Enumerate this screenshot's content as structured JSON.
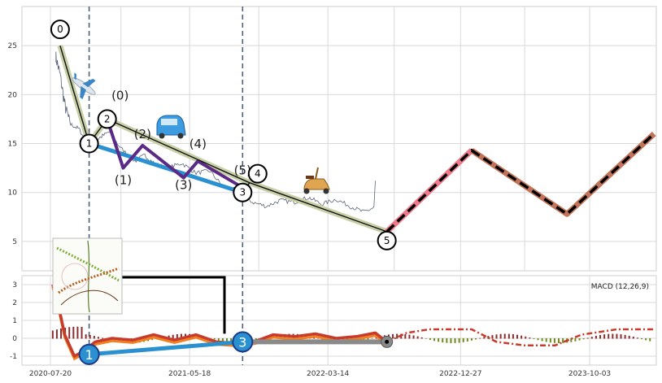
{
  "chart_data": [
    {
      "type": "line",
      "panel": "price",
      "ylim": [
        2,
        29
      ],
      "yticks": [
        5,
        10,
        15,
        20,
        25
      ],
      "grid": true,
      "price_series": [
        {
          "x": "2020-08-01",
          "y": 24
        },
        {
          "x": "2020-08-10",
          "y": 22
        },
        {
          "x": "2020-08-20",
          "y": 19
        },
        {
          "x": "2020-09-01",
          "y": 17
        },
        {
          "x": "2020-09-20",
          "y": 16.5
        },
        {
          "x": "2020-10-12",
          "y": 14.8
        },
        {
          "x": "2020-11-01",
          "y": 15.5
        },
        {
          "x": "2020-11-25",
          "y": 16.2
        },
        {
          "x": "2020-12-20",
          "y": 14.5
        },
        {
          "x": "2021-01-20",
          "y": 13.2
        },
        {
          "x": "2021-02-10",
          "y": 13.8
        },
        {
          "x": "2021-03-05",
          "y": 12.9
        },
        {
          "x": "2021-04-01",
          "y": 12.5
        },
        {
          "x": "2021-05-01",
          "y": 13.0
        },
        {
          "x": "2021-06-01",
          "y": 12.0
        },
        {
          "x": "2021-07-01",
          "y": 12.2
        },
        {
          "x": "2021-08-01",
          "y": 10.5
        },
        {
          "x": "2021-09-05",
          "y": 10.2
        },
        {
          "x": "2021-10-01",
          "y": 9.0
        },
        {
          "x": "2021-11-01",
          "y": 8.6
        },
        {
          "x": "2021-12-01",
          "y": 9.2
        },
        {
          "x": "2022-01-01",
          "y": 9.0
        },
        {
          "x": "2022-02-01",
          "y": 9.5
        },
        {
          "x": "2022-03-01",
          "y": 8.8
        },
        {
          "x": "2022-04-01",
          "y": 9.3
        },
        {
          "x": "2022-05-01",
          "y": 8.6
        },
        {
          "x": "2022-06-01",
          "y": 8.0
        },
        {
          "x": "2022-06-25",
          "y": 8.5
        }
      ],
      "wave_main": [
        {
          "label": "0",
          "x": "2020-08-10",
          "y": 25
        },
        {
          "label": "1",
          "x": "2020-10-12",
          "y": 15
        },
        {
          "label": "2",
          "x": "2020-11-20",
          "y": 17.5
        },
        {
          "label": "3",
          "x": "2021-09-10",
          "y": 10
        },
        {
          "label": "4",
          "x": "2021-09-25",
          "y": 11
        },
        {
          "label": "5",
          "x": "2022-07-20",
          "y": 6
        }
      ],
      "wave_sub": [
        {
          "label": "(0)",
          "x": "2020-11-20",
          "y": 17.5
        },
        {
          "label": "(1)",
          "x": "2020-12-25",
          "y": 12.5
        },
        {
          "label": "(2)",
          "x": "2021-02-05",
          "y": 14.8
        },
        {
          "label": "(3)",
          "x": "2021-05-05",
          "y": 11.5
        },
        {
          "label": "(4)",
          "x": "2021-06-05",
          "y": 13.2
        },
        {
          "label": "(5)",
          "x": "2021-09-10",
          "y": 10.5
        }
      ],
      "projection": [
        {
          "x": "2022-07-20",
          "y": 6
        },
        {
          "x": "2023-01-20",
          "y": 14.3
        },
        {
          "x": "2023-08-15",
          "y": 7.8
        },
        {
          "x": "2024-02-20",
          "y": 16
        }
      ],
      "vlines": [
        "2020-10-12",
        "2021-09-10"
      ],
      "annotations": [
        "(0)",
        "(1)",
        "(2)",
        "(3)",
        "(4)",
        "(5)",
        "0",
        "1",
        "2",
        "3",
        "4",
        "5"
      ]
    },
    {
      "type": "line",
      "panel": "macd",
      "title": "MACD (12,26,9)",
      "ylim": [
        -1.5,
        3.5
      ],
      "yticks": [
        -1,
        0,
        1,
        2,
        3
      ],
      "x_tick_labels": [
        "2020-07-20",
        "2021-05-18",
        "2022-03-14",
        "2022-12-27",
        "2023-10-03"
      ],
      "grid": true,
      "macd_line": [
        {
          "x": "2020-07-25",
          "y": 3.0
        },
        {
          "x": "2020-08-05",
          "y": 2.0
        },
        {
          "x": "2020-08-20",
          "y": 0.2
        },
        {
          "x": "2020-09-10",
          "y": -1.0
        },
        {
          "x": "2020-10-01",
          "y": -0.7
        },
        {
          "x": "2020-10-25",
          "y": -0.2
        },
        {
          "x": "2020-12-01",
          "y": 0.0
        },
        {
          "x": "2021-01-15",
          "y": -0.1
        },
        {
          "x": "2021-03-01",
          "y": 0.2
        },
        {
          "x": "2021-04-15",
          "y": -0.1
        },
        {
          "x": "2021-06-01",
          "y": 0.2
        },
        {
          "x": "2021-07-15",
          "y": -0.2
        },
        {
          "x": "2021-09-10",
          "y": -0.3
        },
        {
          "x": "2021-10-15",
          "y": -0.1
        },
        {
          "x": "2021-11-15",
          "y": 0.2
        },
        {
          "x": "2022-01-01",
          "y": 0.1
        },
        {
          "x": "2022-02-15",
          "y": 0.25
        },
        {
          "x": "2022-04-01",
          "y": 0.0
        },
        {
          "x": "2022-05-15",
          "y": 0.1
        },
        {
          "x": "2022-06-25",
          "y": 0.3
        },
        {
          "x": "2022-07-20",
          "y": -0.2
        }
      ],
      "macd_projection": [
        {
          "x": "2022-07-20",
          "y": -0.2
        },
        {
          "x": "2022-09-01",
          "y": 0.3
        },
        {
          "x": "2022-10-20",
          "y": 0.5
        },
        {
          "x": "2023-01-20",
          "y": 0.5
        },
        {
          "x": "2023-03-15",
          "y": -0.2
        },
        {
          "x": "2023-05-15",
          "y": -0.4
        },
        {
          "x": "2023-07-20",
          "y": -0.4
        },
        {
          "x": "2023-09-15",
          "y": 0.2
        },
        {
          "x": "2023-12-01",
          "y": 0.5
        },
        {
          "x": "2024-02-20",
          "y": 0.5
        }
      ],
      "wave_points": [
        {
          "label": "1",
          "x": "2020-10-12",
          "y": -0.9
        },
        {
          "label": "3",
          "x": "2021-09-10",
          "y": -0.2
        },
        {
          "label": "",
          "x": "2022-07-20",
          "y": -0.2
        }
      ]
    }
  ],
  "icons": {
    "plane": "airplane-icon",
    "car": "car-icon",
    "scooter": "scooter-icon",
    "thumbnail": "plant-thumbnail"
  },
  "colors": {
    "price": "#5a6478",
    "wave_band": "#c8d0a8",
    "blue": "#2b90d0",
    "purple": "#5b2a86",
    "red": "#c83a2a",
    "orange": "#f08020",
    "pink": "#ee7a8a",
    "brown": "#c2745a",
    "green": "#6f8a1a",
    "gray": "#8a8a8a"
  }
}
